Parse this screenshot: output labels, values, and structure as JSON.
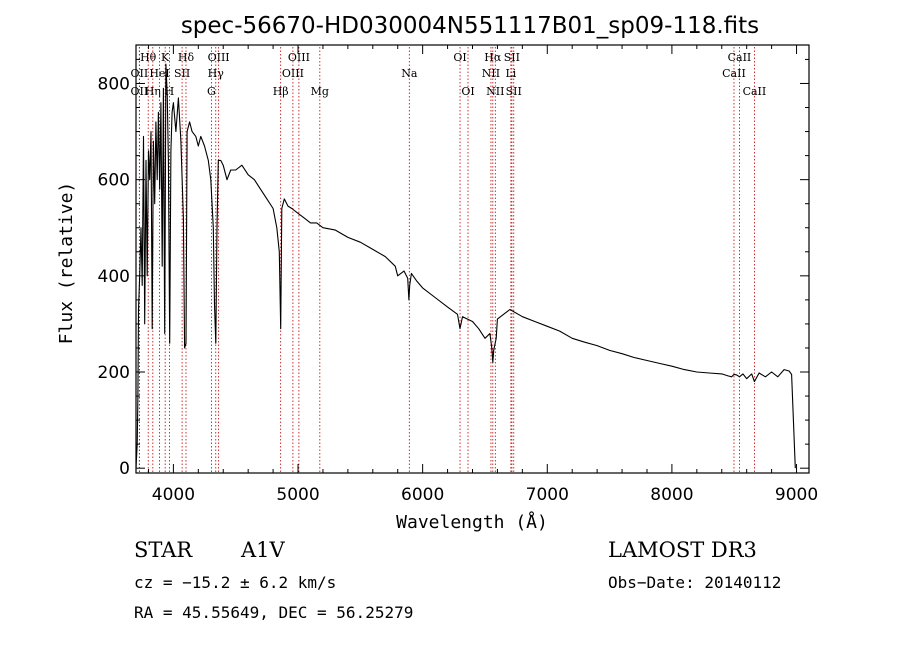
{
  "chart_data": {
    "type": "line",
    "title": "spec-56670-HD030004N551117B01_sp09-118.fits",
    "xlabel": "Wavelength (Å)",
    "ylabel": "Flux (relative)",
    "xlim": [
      3700,
      9100
    ],
    "ylim": [
      -10,
      880
    ],
    "xticks": [
      4000,
      5000,
      6000,
      7000,
      8000,
      9000
    ],
    "yticks": [
      0,
      200,
      400,
      600,
      800
    ],
    "series": [
      {
        "name": "flux",
        "x": [
          3700,
          3710,
          3715,
          3720,
          3730,
          3740,
          3750,
          3760,
          3770,
          3780,
          3790,
          3800,
          3810,
          3820,
          3830,
          3840,
          3850,
          3860,
          3870,
          3880,
          3890,
          3900,
          3910,
          3920,
          3930,
          3940,
          3950,
          3960,
          3970,
          3980,
          3990,
          4000,
          4020,
          4040,
          4060,
          4080,
          4090,
          4101,
          4110,
          4130,
          4150,
          4180,
          4200,
          4220,
          4250,
          4280,
          4300,
          4320,
          4330,
          4340,
          4350,
          4360,
          4380,
          4400,
          4430,
          4460,
          4500,
          4550,
          4600,
          4650,
          4700,
          4750,
          4800,
          4830,
          4850,
          4861,
          4870,
          4890,
          4920,
          4950,
          5000,
          5050,
          5100,
          5150,
          5200,
          5300,
          5400,
          5500,
          5600,
          5700,
          5780,
          5800,
          5850,
          5880,
          5890,
          5896,
          5910,
          5950,
          6000,
          6100,
          6200,
          6280,
          6300,
          6320,
          6400,
          6450,
          6500,
          6540,
          6555,
          6563,
          6570,
          6590,
          6600,
          6700,
          6800,
          6900,
          7000,
          7100,
          7200,
          7300,
          7400,
          7500,
          7600,
          7700,
          7800,
          7900,
          8000,
          8100,
          8200,
          8300,
          8400,
          8450,
          8480,
          8498,
          8520,
          8542,
          8570,
          8600,
          8640,
          8662,
          8700,
          8750,
          8800,
          8850,
          8900,
          8940,
          8960,
          8990
        ],
        "y": [
          0,
          50,
          150,
          330,
          400,
          500,
          380,
          690,
          300,
          640,
          400,
          660,
          600,
          700,
          290,
          680,
          550,
          720,
          600,
          740,
          580,
          760,
          420,
          790,
          280,
          840,
          780,
          640,
          260,
          660,
          740,
          760,
          700,
          770,
          680,
          520,
          250,
          260,
          700,
          720,
          700,
          690,
          670,
          690,
          670,
          640,
          600,
          500,
          340,
          260,
          500,
          640,
          640,
          630,
          600,
          620,
          620,
          630,
          610,
          600,
          580,
          560,
          540,
          500,
          450,
          290,
          540,
          560,
          545,
          540,
          530,
          520,
          510,
          510,
          500,
          495,
          480,
          470,
          455,
          440,
          420,
          400,
          410,
          395,
          350,
          380,
          405,
          390,
          375,
          355,
          335,
          320,
          290,
          315,
          305,
          290,
          270,
          280,
          250,
          220,
          245,
          270,
          310,
          330,
          315,
          305,
          295,
          285,
          270,
          262,
          255,
          245,
          238,
          230,
          224,
          218,
          212,
          205,
          200,
          198,
          196,
          192,
          190,
          195,
          194,
          190,
          196,
          186,
          196,
          180,
          198,
          190,
          200,
          190,
          205,
          202,
          195,
          0
        ]
      }
    ],
    "spectral_lines": [
      {
        "label": "Hθ",
        "wave": 3798,
        "row": 1
      },
      {
        "label": "OII",
        "wave": 3727,
        "row": 2
      },
      {
        "label": "OII",
        "wave": 3727,
        "row": 3
      },
      {
        "label": "HeI",
        "wave": 3889,
        "row": 2
      },
      {
        "label": "Hη",
        "wave": 3835,
        "row": 3
      },
      {
        "label": "K",
        "wave": 3934,
        "row": 1
      },
      {
        "label": "H",
        "wave": 3968,
        "row": 3
      },
      {
        "label": "Hδ",
        "wave": 4101,
        "row": 1
      },
      {
        "label": "SII",
        "wave": 4070,
        "row": 2
      },
      {
        "label": "OIII",
        "wave": 4363,
        "row": 1
      },
      {
        "label": "Hγ",
        "wave": 4340,
        "row": 2
      },
      {
        "label": "G",
        "wave": 4305,
        "row": 3
      },
      {
        "label": "Hβ",
        "wave": 4861,
        "row": 3
      },
      {
        "label": "OIII",
        "wave": 5007,
        "row": 1
      },
      {
        "label": "OIII",
        "wave": 4959,
        "row": 2
      },
      {
        "label": "Mg",
        "wave": 5175,
        "row": 3
      },
      {
        "label": "Na",
        "wave": 5893,
        "row": 2
      },
      {
        "label": "OI",
        "wave": 6300,
        "row": 1
      },
      {
        "label": "OI",
        "wave": 6364,
        "row": 3
      },
      {
        "label": "Hα",
        "wave": 6563,
        "row": 1
      },
      {
        "label": "NII",
        "wave": 6548,
        "row": 2
      },
      {
        "label": "NII",
        "wave": 6583,
        "row": 3
      },
      {
        "label": "SII",
        "wave": 6716,
        "row": 1
      },
      {
        "label": "Li",
        "wave": 6708,
        "row": 2
      },
      {
        "label": "SII",
        "wave": 6731,
        "row": 3
      },
      {
        "label": "CaII",
        "wave": 8542,
        "row": 1
      },
      {
        "label": "CaII",
        "wave": 8498,
        "row": 2
      },
      {
        "label": "CaII",
        "wave": 8662,
        "row": 3
      }
    ]
  },
  "info": {
    "object_type": "STAR",
    "subclass": "A1V",
    "survey": "LAMOST DR3",
    "redshift": "cz = −15.2 ± 6.2 km/s",
    "obs_date": "Obs−Date: 20140112",
    "coords": "RA =  45.55649, DEC =  56.25279"
  },
  "colors": {
    "line_marker": "#c00000",
    "spectrum": "#000000"
  }
}
